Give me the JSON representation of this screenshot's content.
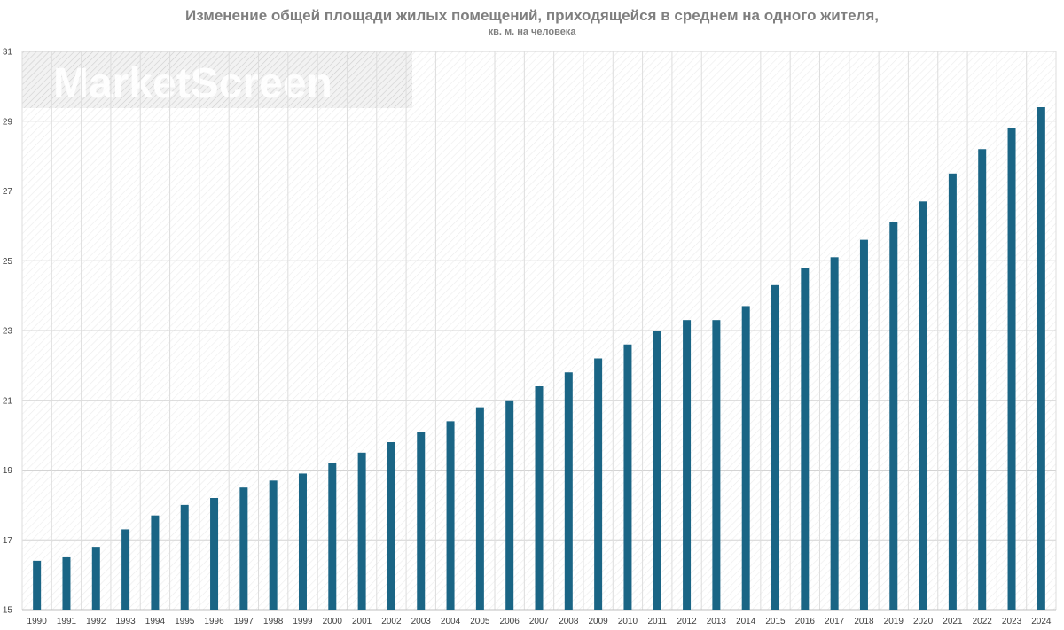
{
  "chart_data": {
    "type": "bar",
    "title": "Изменение общей площади жилых помещений, приходящейся в среднем на одного жителя,",
    "subtitle": "кв. м. на человека",
    "xlabel": "",
    "ylabel": "",
    "ylim": [
      15,
      31
    ],
    "yticks": [
      15,
      17,
      19,
      21,
      23,
      25,
      27,
      29,
      31
    ],
    "grid": true,
    "legend": "none",
    "bar_color": "#1a6585",
    "categories": [
      "1990",
      "1991",
      "1992",
      "1993",
      "1994",
      "1995",
      "1996",
      "1997",
      "1998",
      "1999",
      "2000",
      "2001",
      "2002",
      "2003",
      "2004",
      "2005",
      "2006",
      "2007",
      "2008",
      "2009",
      "2010",
      "2011",
      "2012",
      "2013",
      "2014",
      "2015",
      "2016",
      "2017",
      "2018",
      "2019",
      "2020",
      "2021",
      "2022",
      "2023",
      "2024"
    ],
    "values": [
      16.4,
      16.5,
      16.8,
      17.3,
      17.7,
      18.0,
      18.2,
      18.5,
      18.7,
      18.9,
      19.2,
      19.5,
      19.8,
      20.1,
      20.4,
      20.8,
      21.0,
      21.4,
      21.8,
      22.2,
      22.6,
      23.0,
      23.3,
      23.3,
      23.7,
      24.3,
      24.8,
      25.1,
      25.6,
      26.1,
      26.7,
      27.5,
      28.2,
      28.8,
      29.4
    ]
  },
  "watermark": {
    "text": "MarketScreen"
  }
}
